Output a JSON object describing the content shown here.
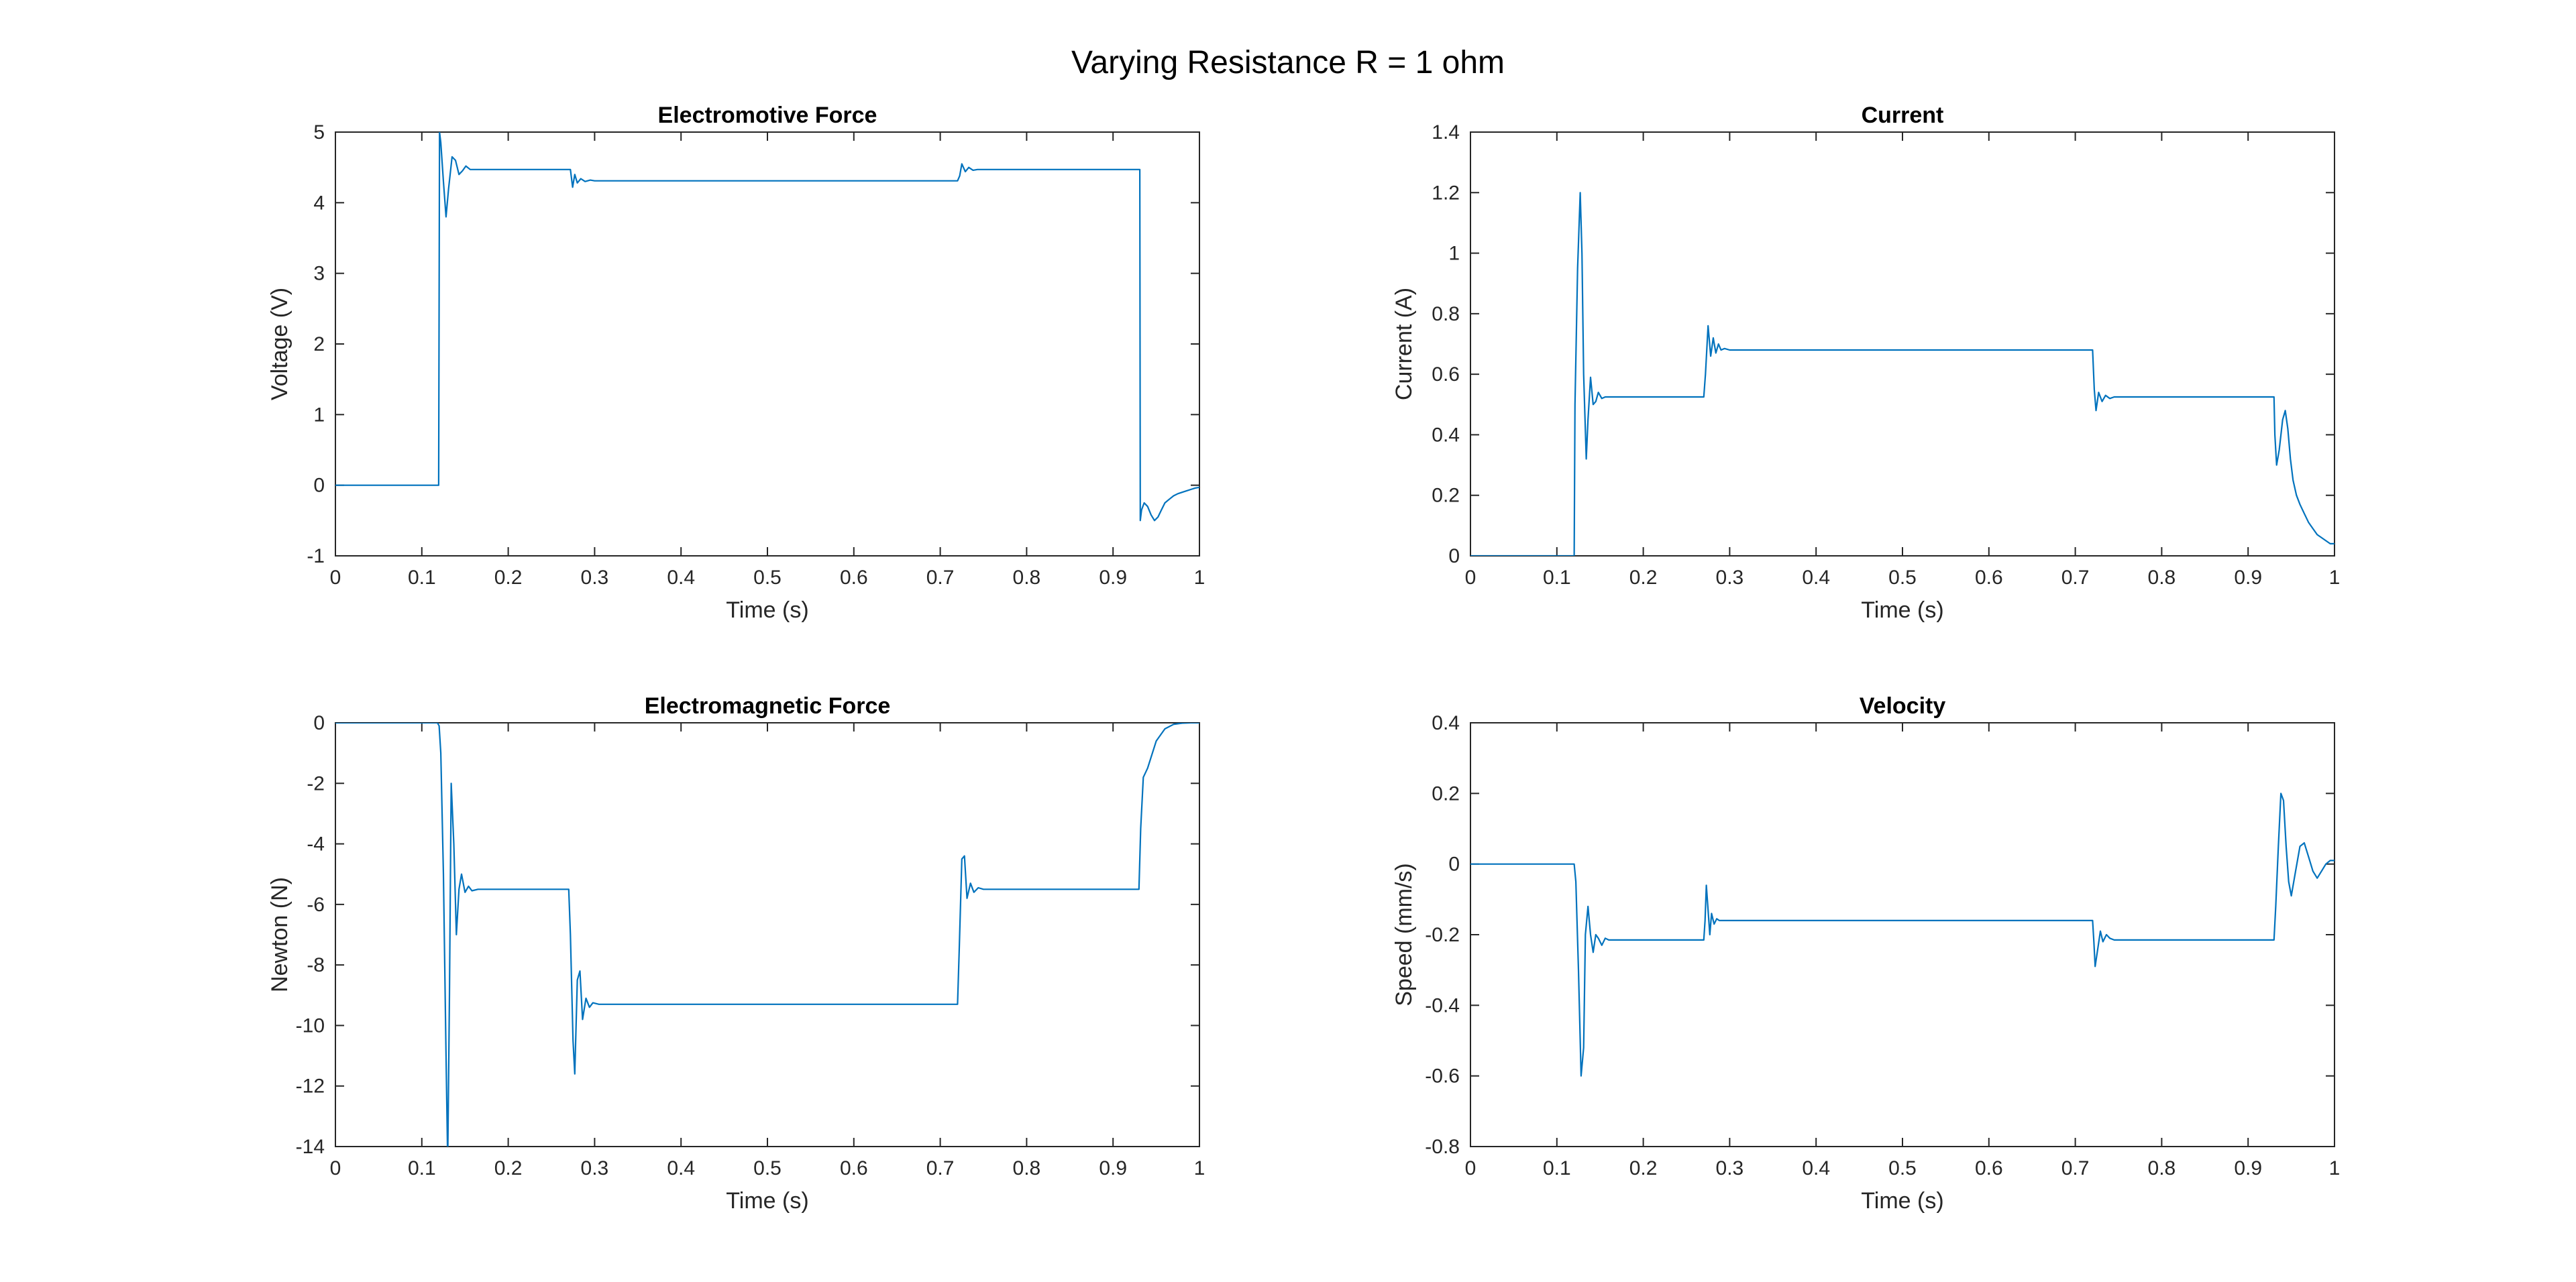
{
  "figure": {
    "title": "Varying Resistance R = 1 ohm",
    "line_color": "#0072BD"
  },
  "chart_data": [
    {
      "type": "line",
      "title": "Electromotive Force",
      "xlabel": "Time (s)",
      "ylabel": "Voltage (V)",
      "xlim": [
        0,
        1
      ],
      "ylim": [
        -1,
        5
      ],
      "xticks": [
        "0",
        "0.1",
        "0.2",
        "0.3",
        "0.4",
        "0.5",
        "0.6",
        "0.7",
        "0.8",
        "0.9",
        "1"
      ],
      "yticks": [
        "-1",
        "0",
        "1",
        "2",
        "3",
        "4",
        "5"
      ],
      "grid": false,
      "series": [
        {
          "x": [
            0,
            0.118,
            0.1195,
            0.1205,
            0.122,
            0.125,
            0.128,
            0.131,
            0.135,
            0.139,
            0.143,
            0.147,
            0.151,
            0.156,
            0.165,
            0.175,
            0.2,
            0.272,
            0.2745,
            0.277,
            0.28,
            0.284,
            0.289,
            0.295,
            0.3,
            0.35,
            0.5,
            0.6,
            0.72,
            0.7225,
            0.725,
            0.729,
            0.733,
            0.738,
            0.743,
            0.75,
            0.8,
            0.9,
            0.931,
            0.9315,
            0.933,
            0.936,
            0.94,
            0.944,
            0.948,
            0.952,
            0.956,
            0.96,
            0.965,
            0.97,
            0.975,
            0.98,
            0.985,
            0.99,
            0.995,
            1.0
          ],
          "y": [
            0,
            0,
            0,
            5.0,
            4.85,
            4.3,
            3.8,
            4.2,
            4.65,
            4.6,
            4.4,
            4.45,
            4.52,
            4.47,
            4.47,
            4.47,
            4.47,
            4.47,
            4.22,
            4.4,
            4.28,
            4.34,
            4.3,
            4.32,
            4.31,
            4.31,
            4.31,
            4.31,
            4.31,
            4.38,
            4.55,
            4.44,
            4.5,
            4.46,
            4.47,
            4.47,
            4.47,
            4.47,
            4.47,
            -0.5,
            -0.35,
            -0.25,
            -0.3,
            -0.42,
            -0.5,
            -0.45,
            -0.35,
            -0.25,
            -0.2,
            -0.15,
            -0.12,
            -0.1,
            -0.08,
            -0.06,
            -0.04,
            -0.03
          ]
        }
      ]
    },
    {
      "type": "line",
      "title": "Current",
      "xlabel": "Time (s)",
      "ylabel": "Current (A)",
      "xlim": [
        0,
        1
      ],
      "ylim": [
        0,
        1.4
      ],
      "xticks": [
        "0",
        "0.1",
        "0.2",
        "0.3",
        "0.4",
        "0.5",
        "0.6",
        "0.7",
        "0.8",
        "0.9",
        "1"
      ],
      "yticks": [
        "0",
        "0.2",
        "0.4",
        "0.6",
        "0.8",
        "1",
        "1.2",
        "1.4"
      ],
      "grid": false,
      "series": [
        {
          "x": [
            0,
            0.12,
            0.121,
            0.124,
            0.127,
            0.129,
            0.131,
            0.134,
            0.136,
            0.139,
            0.142,
            0.145,
            0.148,
            0.152,
            0.156,
            0.16,
            0.17,
            0.2,
            0.27,
            0.272,
            0.275,
            0.278,
            0.281,
            0.284,
            0.287,
            0.29,
            0.294,
            0.3,
            0.35,
            0.5,
            0.6,
            0.7,
            0.72,
            0.722,
            0.724,
            0.727,
            0.731,
            0.735,
            0.74,
            0.745,
            0.75,
            0.8,
            0.9,
            0.93,
            0.931,
            0.933,
            0.936,
            0.94,
            0.943,
            0.946,
            0.949,
            0.952,
            0.956,
            0.96,
            0.965,
            0.97,
            0.975,
            0.98,
            0.985,
            0.99,
            0.995,
            1.0
          ],
          "y": [
            0,
            0,
            0.5,
            0.95,
            1.2,
            1.0,
            0.6,
            0.32,
            0.45,
            0.59,
            0.5,
            0.51,
            0.54,
            0.52,
            0.525,
            0.525,
            0.525,
            0.525,
            0.525,
            0.6,
            0.76,
            0.66,
            0.72,
            0.67,
            0.7,
            0.68,
            0.685,
            0.68,
            0.68,
            0.68,
            0.68,
            0.68,
            0.68,
            0.55,
            0.48,
            0.54,
            0.51,
            0.53,
            0.52,
            0.525,
            0.525,
            0.525,
            0.525,
            0.525,
            0.4,
            0.3,
            0.35,
            0.45,
            0.48,
            0.42,
            0.32,
            0.25,
            0.2,
            0.17,
            0.14,
            0.11,
            0.09,
            0.07,
            0.06,
            0.05,
            0.04,
            0.04
          ]
        }
      ]
    },
    {
      "type": "line",
      "title": "Electromagnetic Force",
      "xlabel": "Time (s)",
      "ylabel": "Newton (N)",
      "xlim": [
        0,
        1
      ],
      "ylim": [
        -14,
        0
      ],
      "xticks": [
        "0",
        "0.1",
        "0.2",
        "0.3",
        "0.4",
        "0.5",
        "0.6",
        "0.7",
        "0.8",
        "0.9",
        "1"
      ],
      "yticks": [
        "-14",
        "-12",
        "-10",
        "-8",
        "-6",
        "-4",
        "-2",
        "0"
      ],
      "grid": false,
      "series": [
        {
          "x": [
            0,
            0.118,
            0.12,
            0.122,
            0.125,
            0.128,
            0.13,
            0.132,
            0.134,
            0.137,
            0.14,
            0.143,
            0.146,
            0.15,
            0.154,
            0.158,
            0.165,
            0.2,
            0.27,
            0.272,
            0.275,
            0.277,
            0.28,
            0.283,
            0.286,
            0.29,
            0.294,
            0.298,
            0.305,
            0.35,
            0.5,
            0.6,
            0.72,
            0.722,
            0.725,
            0.728,
            0.731,
            0.735,
            0.739,
            0.744,
            0.75,
            0.8,
            0.9,
            0.93,
            0.932,
            0.935,
            0.94,
            0.95,
            0.96,
            0.97,
            0.98,
            0.99,
            1.0
          ],
          "y": [
            0,
            0,
            -0.1,
            -1.0,
            -5.0,
            -11.0,
            -14.5,
            -9.0,
            -2.0,
            -4.0,
            -7.0,
            -5.5,
            -5.0,
            -5.6,
            -5.4,
            -5.55,
            -5.5,
            -5.5,
            -5.5,
            -7.0,
            -10.5,
            -11.6,
            -8.5,
            -8.2,
            -9.8,
            -9.1,
            -9.4,
            -9.25,
            -9.3,
            -9.3,
            -9.3,
            -9.3,
            -9.3,
            -7.5,
            -4.5,
            -4.4,
            -5.8,
            -5.3,
            -5.6,
            -5.45,
            -5.5,
            -5.5,
            -5.5,
            -5.5,
            -3.5,
            -1.8,
            -1.5,
            -0.6,
            -0.2,
            -0.05,
            -0.01,
            0,
            0
          ]
        }
      ]
    },
    {
      "type": "line",
      "title": "Velocity",
      "xlabel": "Time (s)",
      "ylabel": "Speed (mm/s)",
      "xlim": [
        0,
        1
      ],
      "ylim": [
        -0.8,
        0.4
      ],
      "xticks": [
        "0",
        "0.1",
        "0.2",
        "0.3",
        "0.4",
        "0.5",
        "0.6",
        "0.7",
        "0.8",
        "0.9",
        "1"
      ],
      "yticks": [
        "-0.8",
        "-0.6",
        "-0.4",
        "-0.2",
        "0",
        "0.2",
        "0.4"
      ],
      "grid": false,
      "series": [
        {
          "x": [
            0,
            0.12,
            0.122,
            0.125,
            0.128,
            0.131,
            0.133,
            0.136,
            0.139,
            0.142,
            0.145,
            0.148,
            0.152,
            0.156,
            0.16,
            0.165,
            0.175,
            0.2,
            0.27,
            0.2715,
            0.273,
            0.275,
            0.277,
            0.279,
            0.282,
            0.285,
            0.288,
            0.292,
            0.3,
            0.35,
            0.5,
            0.6,
            0.72,
            0.7215,
            0.723,
            0.726,
            0.729,
            0.732,
            0.736,
            0.74,
            0.745,
            0.75,
            0.8,
            0.9,
            0.93,
            0.932,
            0.935,
            0.938,
            0.941,
            0.944,
            0.947,
            0.95,
            0.955,
            0.96,
            0.965,
            0.97,
            0.975,
            0.98,
            0.985,
            0.99,
            0.995,
            1.0
          ],
          "y": [
            0,
            0,
            -0.05,
            -0.3,
            -0.6,
            -0.52,
            -0.2,
            -0.12,
            -0.2,
            -0.25,
            -0.2,
            -0.21,
            -0.23,
            -0.21,
            -0.215,
            -0.215,
            -0.215,
            -0.215,
            -0.215,
            -0.16,
            -0.06,
            -0.13,
            -0.2,
            -0.14,
            -0.17,
            -0.155,
            -0.16,
            -0.16,
            -0.16,
            -0.16,
            -0.16,
            -0.16,
            -0.16,
            -0.22,
            -0.29,
            -0.24,
            -0.19,
            -0.22,
            -0.2,
            -0.21,
            -0.215,
            -0.215,
            -0.215,
            -0.215,
            -0.215,
            -0.12,
            0.05,
            0.2,
            0.18,
            0.05,
            -0.05,
            -0.09,
            -0.02,
            0.05,
            0.06,
            0.02,
            -0.02,
            -0.04,
            -0.02,
            0.0,
            0.01,
            0.01
          ]
        }
      ]
    }
  ]
}
